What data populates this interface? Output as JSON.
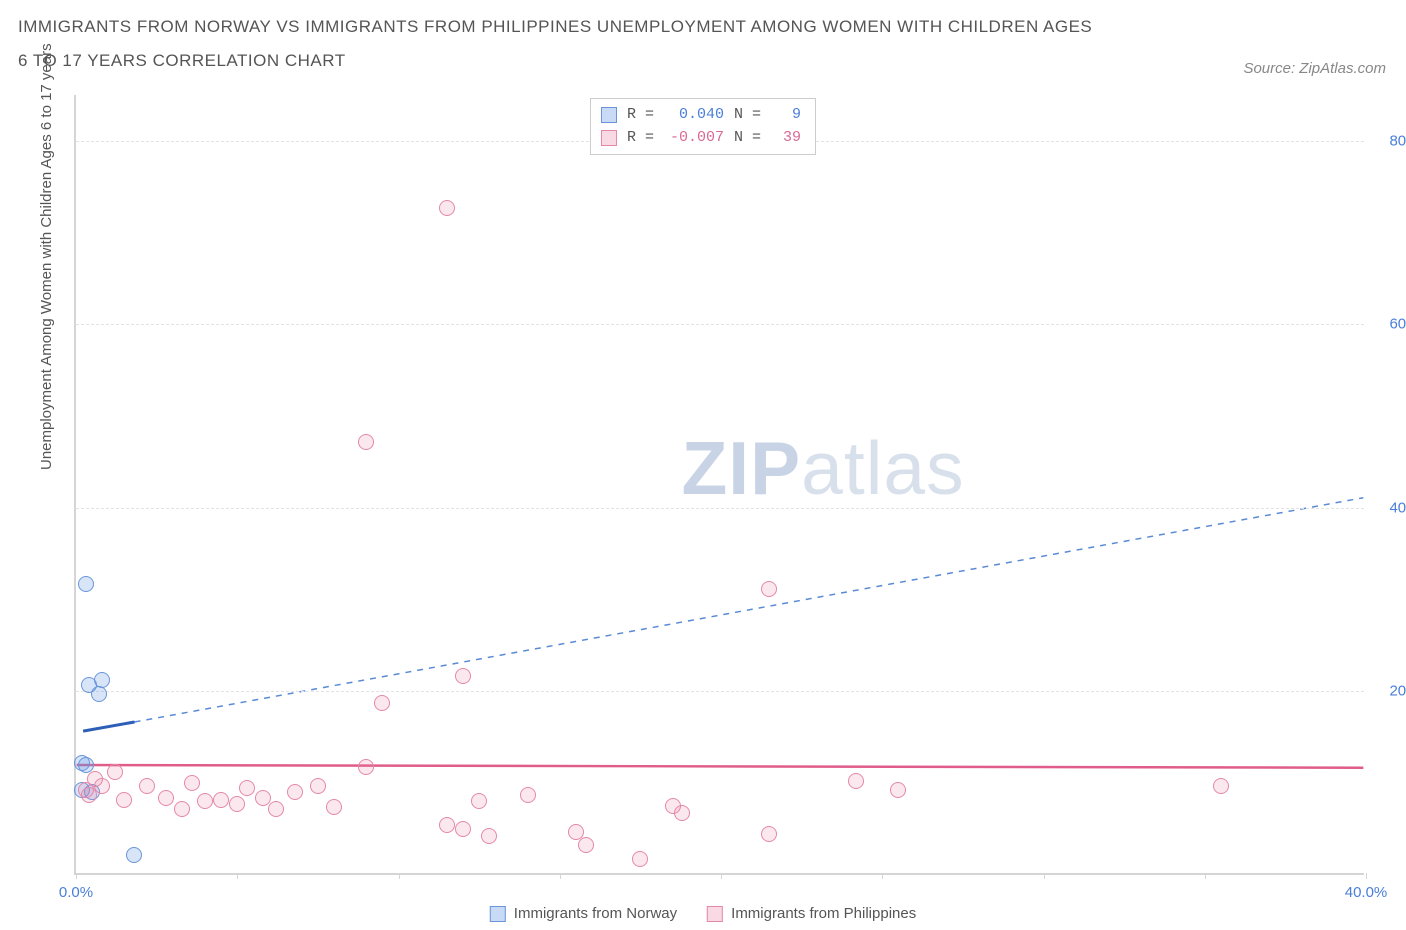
{
  "title": "IMMIGRANTS FROM NORWAY VS IMMIGRANTS FROM PHILIPPINES UNEMPLOYMENT AMONG WOMEN WITH CHILDREN AGES 6 TO 17 YEARS CORRELATION CHART",
  "source": "Source: ZipAtlas.com",
  "y_axis_label": "Unemployment Among Women with Children Ages 6 to 17 years",
  "watermark_a": "ZIP",
  "watermark_b": "atlas",
  "chart": {
    "type": "scatter",
    "xlim": [
      0,
      40
    ],
    "ylim": [
      0,
      85
    ],
    "x_ticks": [
      0,
      5,
      10,
      15,
      20,
      25,
      30,
      35,
      40
    ],
    "x_tick_labels": {
      "0": "0.0%",
      "40": "40.0%"
    },
    "y_ticks": [
      20,
      40,
      60,
      80
    ],
    "y_tick_labels": {
      "20": "20.0%",
      "40": "40.0%",
      "60": "60.0%",
      "80": "80.0%"
    },
    "grid_color": "#e3e3e3",
    "background_color": "#ffffff",
    "series": [
      {
        "name": "Immigrants from Norway",
        "color": "#6a95d8",
        "fill": "rgba(100,150,230,0.25)",
        "R": "0.040",
        "N": "9",
        "points": [
          [
            0.3,
            31.5
          ],
          [
            0.4,
            20.5
          ],
          [
            0.8,
            21.0
          ],
          [
            0.7,
            19.5
          ],
          [
            0.2,
            12.0
          ],
          [
            0.3,
            11.8
          ],
          [
            0.2,
            9.0
          ],
          [
            0.5,
            8.8
          ],
          [
            1.8,
            2.0
          ]
        ],
        "trend": {
          "x1": 0.2,
          "y1": 15.5,
          "x2": 1.8,
          "y2": 16.5,
          "dash_x2": 40,
          "dash_y2": 41
        }
      },
      {
        "name": "Immigrants from Philippines",
        "color": "#e588a8",
        "fill": "rgba(235,130,165,0.18)",
        "R": "-0.007",
        "N": "39",
        "points": [
          [
            11.5,
            72.5
          ],
          [
            9.0,
            47.0
          ],
          [
            21.5,
            31.0
          ],
          [
            12.0,
            21.5
          ],
          [
            9.5,
            18.5
          ],
          [
            0.6,
            10.2
          ],
          [
            0.8,
            9.5
          ],
          [
            0.3,
            9.0
          ],
          [
            0.4,
            8.5
          ],
          [
            1.2,
            11.0
          ],
          [
            1.5,
            8.0
          ],
          [
            2.2,
            9.5
          ],
          [
            2.8,
            8.2
          ],
          [
            3.3,
            7.0
          ],
          [
            3.6,
            9.8
          ],
          [
            4.0,
            7.8
          ],
          [
            4.5,
            8.0
          ],
          [
            5.0,
            7.5
          ],
          [
            5.3,
            9.3
          ],
          [
            5.8,
            8.2
          ],
          [
            6.2,
            7.0
          ],
          [
            6.8,
            8.8
          ],
          [
            7.5,
            9.5
          ],
          [
            8.0,
            7.2
          ],
          [
            9.0,
            11.5
          ],
          [
            11.5,
            5.2
          ],
          [
            12.0,
            4.8
          ],
          [
            12.5,
            7.8
          ],
          [
            12.8,
            4.0
          ],
          [
            14.0,
            8.5
          ],
          [
            15.5,
            4.5
          ],
          [
            15.8,
            3.0
          ],
          [
            17.5,
            1.5
          ],
          [
            18.5,
            7.3
          ],
          [
            18.8,
            6.5
          ],
          [
            21.5,
            4.2
          ],
          [
            24.2,
            10.0
          ],
          [
            25.5,
            9.0
          ],
          [
            35.5,
            9.5
          ]
        ],
        "trend": {
          "x1": 0,
          "y1": 11.8,
          "x2": 40,
          "y2": 11.5
        }
      }
    ]
  },
  "legend_top": {
    "r_label": "R =",
    "n_label": "N ="
  },
  "legend_bottom": {
    "series1": "Immigrants from Norway",
    "series2": "Immigrants from Philippines"
  }
}
